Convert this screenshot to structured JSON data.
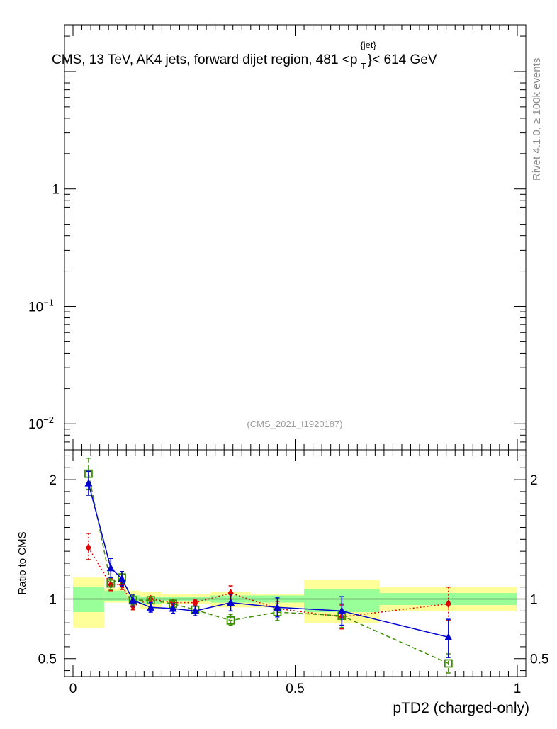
{
  "chart_data": {
    "type": "ratio",
    "title": "CMS, 13 TeV, AK4 jets, forward dijet region, 481 <p",
    "title_sup": "{jet}",
    "title_sub": "T",
    "title_tail": "}< 614 GeV",
    "side_label": "Rivet 4.1.0, ≥ 100k events",
    "watermark": "(CMS_2021_I1920187)",
    "xlabel": "pTD2 (charged-only)",
    "ylabel_lower": "Ratio to CMS",
    "x_range": [
      0,
      1
    ],
    "x_ticks": [
      {
        "value": 0,
        "label": "0"
      },
      {
        "value": 0.5,
        "label": "0.5"
      },
      {
        "value": 1,
        "label": "1"
      }
    ],
    "upper_panel": {
      "scale": "log",
      "y_range": [
        0.006,
        25
      ],
      "y_ticks": [
        {
          "value": 1,
          "base": "1",
          "exp": ""
        },
        {
          "value": 0.1,
          "base": "10",
          "exp": "−1"
        },
        {
          "value": 0.01,
          "base": "10",
          "exp": "−2"
        }
      ]
    },
    "lower_panel": {
      "y_range": [
        0.35,
        2.25
      ],
      "y_ticks": [
        {
          "value": 0.5,
          "label": "0.5"
        },
        {
          "value": 1,
          "label": "1"
        },
        {
          "value": 2,
          "label": "2"
        }
      ],
      "reference_line": 1.0,
      "bands": [
        {
          "x0": 0.0,
          "x1": 0.07,
          "inner": [
            0.89,
            1.1
          ],
          "outer": [
            0.76,
            1.18
          ]
        },
        {
          "x0": 0.07,
          "x1": 0.1,
          "inner": [
            0.98,
            1.07
          ],
          "outer": [
            0.97,
            1.09
          ]
        },
        {
          "x0": 0.1,
          "x1": 0.12,
          "inner": [
            0.98,
            1.07
          ],
          "outer": [
            0.97,
            1.1
          ]
        },
        {
          "x0": 0.12,
          "x1": 0.15,
          "inner": [
            0.98,
            1.03
          ],
          "outer": [
            0.97,
            1.07
          ]
        },
        {
          "x0": 0.15,
          "x1": 0.2,
          "inner": [
            0.96,
            1.02
          ],
          "outer": [
            0.92,
            1.06
          ]
        },
        {
          "x0": 0.2,
          "x1": 0.25,
          "inner": [
            0.98,
            1.02
          ],
          "outer": [
            0.96,
            1.04
          ]
        },
        {
          "x0": 0.25,
          "x1": 0.31,
          "inner": [
            0.98,
            1.02
          ],
          "outer": [
            0.96,
            1.04
          ]
        },
        {
          "x0": 0.31,
          "x1": 0.4,
          "inner": [
            0.97,
            1.03
          ],
          "outer": [
            0.93,
            1.06
          ]
        },
        {
          "x0": 0.4,
          "x1": 0.52,
          "inner": [
            0.97,
            1.03
          ],
          "outer": [
            0.93,
            1.04
          ]
        },
        {
          "x0": 0.52,
          "x1": 0.69,
          "inner": [
            0.89,
            1.08
          ],
          "outer": [
            0.8,
            1.16
          ]
        },
        {
          "x0": 0.69,
          "x1": 1.0,
          "inner": [
            0.95,
            1.05
          ],
          "outer": [
            0.9,
            1.1
          ]
        }
      ],
      "series": [
        {
          "color": "#e00000",
          "marker": "diamond",
          "line": "dotted",
          "x": [
            0.035,
            0.085,
            0.11,
            0.135,
            0.175,
            0.225,
            0.275,
            0.355,
            0.46,
            0.605,
            0.845
          ],
          "y": [
            1.43,
            1.12,
            1.12,
            0.94,
            1.0,
            0.97,
            0.97,
            1.05,
            0.92,
            0.85,
            0.96
          ],
          "err_low": [
            0.1,
            0.05,
            0.04,
            0.03,
            0.02,
            0.02,
            0.02,
            0.05,
            0.06,
            0.1,
            0.14
          ],
          "err_high": [
            0.12,
            0.05,
            0.04,
            0.03,
            0.02,
            0.02,
            0.02,
            0.06,
            0.06,
            0.1,
            0.14
          ]
        },
        {
          "color": "#3a9100",
          "marker": "open-square",
          "line": "dashed",
          "x": [
            0.035,
            0.085,
            0.11,
            0.135,
            0.175,
            0.225,
            0.275,
            0.355,
            0.46,
            0.605,
            0.845
          ],
          "y": [
            2.05,
            1.13,
            1.18,
            0.99,
            0.99,
            0.96,
            0.91,
            0.82,
            0.89,
            0.86,
            0.46
          ],
          "err_low": [
            0.13,
            0.05,
            0.05,
            0.04,
            0.03,
            0.02,
            0.03,
            0.04,
            0.07,
            0.1,
            0.08
          ],
          "err_high": [
            0.13,
            0.05,
            0.05,
            0.04,
            0.03,
            0.02,
            0.03,
            0.05,
            0.07,
            0.1,
            0.08
          ]
        },
        {
          "color": "#0000d0",
          "marker": "triangle",
          "line": "solid",
          "x": [
            0.035,
            0.085,
            0.11,
            0.135,
            0.175,
            0.225,
            0.275,
            0.355,
            0.46,
            0.605,
            0.845
          ],
          "y": [
            1.97,
            1.26,
            1.17,
            0.99,
            0.93,
            0.92,
            0.9,
            0.97,
            0.93,
            0.9,
            0.68
          ],
          "err_low": [
            0.1,
            0.08,
            0.06,
            0.05,
            0.04,
            0.04,
            0.04,
            0.07,
            0.08,
            0.12,
            0.17
          ],
          "err_high": [
            0.1,
            0.08,
            0.06,
            0.05,
            0.04,
            0.04,
            0.04,
            0.07,
            0.08,
            0.12,
            0.15
          ]
        }
      ]
    }
  }
}
